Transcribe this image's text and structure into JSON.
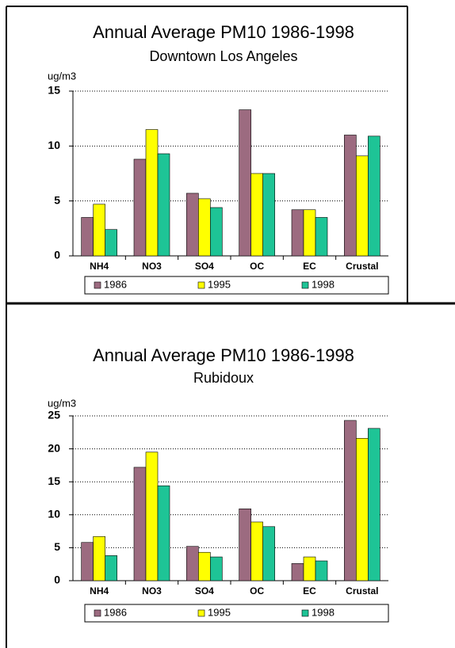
{
  "chart_data": [
    {
      "type": "bar",
      "title": "Annual Average PM10 1986-1998",
      "subtitle": "Downtown Los Angeles",
      "y_label": "ug/m3",
      "categories": [
        "NH4",
        "NO3",
        "SO4",
        "OC",
        "EC",
        "Crustal"
      ],
      "series": [
        {
          "name": "1986",
          "color": "#9c6b80",
          "values": [
            3.5,
            8.8,
            5.7,
            13.3,
            4.2,
            11.0
          ]
        },
        {
          "name": "1995",
          "color": "#ffff00",
          "values": [
            4.7,
            11.5,
            5.2,
            7.5,
            4.2,
            9.1
          ]
        },
        {
          "name": "1998",
          "color": "#1ec496",
          "values": [
            2.4,
            9.3,
            4.4,
            7.5,
            3.5,
            10.9
          ]
        }
      ],
      "ylim": [
        0,
        15
      ],
      "yticks": [
        0,
        5,
        10,
        15
      ],
      "grid": true
    },
    {
      "type": "bar",
      "title": "Annual Average PM10 1986-1998",
      "subtitle": "Rubidoux",
      "y_label": "ug/m3",
      "categories": [
        "NH4",
        "NO3",
        "SO4",
        "OC",
        "EC",
        "Crustal"
      ],
      "series": [
        {
          "name": "1986",
          "color": "#9c6b80",
          "values": [
            5.8,
            17.2,
            5.2,
            10.9,
            2.6,
            24.3
          ]
        },
        {
          "name": "1995",
          "color": "#ffff00",
          "values": [
            6.7,
            19.5,
            4.3,
            8.9,
            3.6,
            21.6
          ]
        },
        {
          "name": "1998",
          "color": "#1ec496",
          "values": [
            3.8,
            14.4,
            3.6,
            8.2,
            3.0,
            23.1
          ]
        }
      ],
      "ylim": [
        0,
        25
      ],
      "yticks": [
        0,
        5,
        10,
        15,
        20,
        25
      ],
      "grid": true
    }
  ]
}
